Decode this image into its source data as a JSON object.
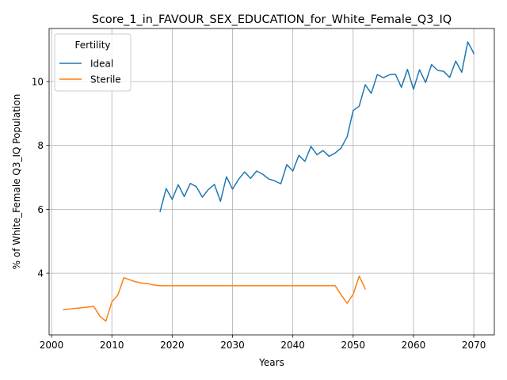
{
  "chart_data": {
    "type": "line",
    "title": "Score_1_in_FAVOUR_SEX_EDUCATION_for_White_Female_Q3_IQ",
    "xlabel": "Years",
    "ylabel": "% of White_Female Q3_IQ Population",
    "xlim": [
      1999.6,
      2073.4
    ],
    "ylim": [
      2.07,
      11.66
    ],
    "xticks": [
      2000,
      2010,
      2020,
      2030,
      2040,
      2050,
      2060,
      2070
    ],
    "yticks": [
      4,
      6,
      8,
      10
    ],
    "grid": true,
    "legend": {
      "title": "Fertility",
      "position": "top-left"
    },
    "series": [
      {
        "name": "Ideal",
        "color": "#1f77b4",
        "x": [
          2018,
          2019,
          2020,
          2021,
          2022,
          2023,
          2024,
          2025,
          2026,
          2027,
          2028,
          2029,
          2030,
          2031,
          2032,
          2033,
          2034,
          2035,
          2036,
          2037,
          2038,
          2039,
          2040,
          2041,
          2042,
          2043,
          2044,
          2045,
          2046,
          2047,
          2048,
          2049,
          2050,
          2051,
          2052,
          2053,
          2054,
          2055,
          2056,
          2057,
          2058,
          2059,
          2060,
          2061,
          2062,
          2063,
          2064,
          2065,
          2066,
          2067,
          2068,
          2069,
          2070
        ],
        "values": [
          5.93,
          6.65,
          6.31,
          6.77,
          6.4,
          6.81,
          6.71,
          6.38,
          6.62,
          6.78,
          6.25,
          7.02,
          6.63,
          6.94,
          7.17,
          6.97,
          7.2,
          7.1,
          6.95,
          6.89,
          6.8,
          7.4,
          7.2,
          7.69,
          7.5,
          7.97,
          7.71,
          7.84,
          7.66,
          7.76,
          7.92,
          8.27,
          9.09,
          9.23,
          9.9,
          9.63,
          10.22,
          10.12,
          10.21,
          10.23,
          9.82,
          10.38,
          9.76,
          10.37,
          9.97,
          10.53,
          10.35,
          10.32,
          10.13,
          10.64,
          10.29,
          11.24,
          10.88
        ]
      },
      {
        "name": "Sterile",
        "color": "#ff7f0e",
        "x": [
          2002,
          2003,
          2004,
          2005,
          2006,
          2007,
          2008,
          2009,
          2010,
          2011,
          2012,
          2013,
          2014,
          2015,
          2016,
          2017,
          2018,
          2019,
          2020,
          2021,
          2022,
          2023,
          2024,
          2025,
          2026,
          2027,
          2028,
          2029,
          2030,
          2031,
          2032,
          2033,
          2034,
          2035,
          2036,
          2037,
          2038,
          2039,
          2040,
          2041,
          2042,
          2043,
          2044,
          2045,
          2046,
          2047,
          2048,
          2049,
          2050,
          2051,
          2052
        ],
        "values": [
          2.86,
          2.88,
          2.9,
          2.92,
          2.94,
          2.96,
          2.66,
          2.5,
          3.1,
          3.32,
          3.86,
          3.79,
          3.73,
          3.69,
          3.67,
          3.63,
          3.61,
          3.61,
          3.61,
          3.61,
          3.61,
          3.61,
          3.61,
          3.61,
          3.61,
          3.61,
          3.61,
          3.61,
          3.61,
          3.61,
          3.61,
          3.61,
          3.61,
          3.61,
          3.61,
          3.61,
          3.61,
          3.61,
          3.61,
          3.61,
          3.61,
          3.61,
          3.61,
          3.61,
          3.61,
          3.61,
          3.33,
          3.06,
          3.34,
          3.91,
          3.51
        ]
      }
    ]
  }
}
